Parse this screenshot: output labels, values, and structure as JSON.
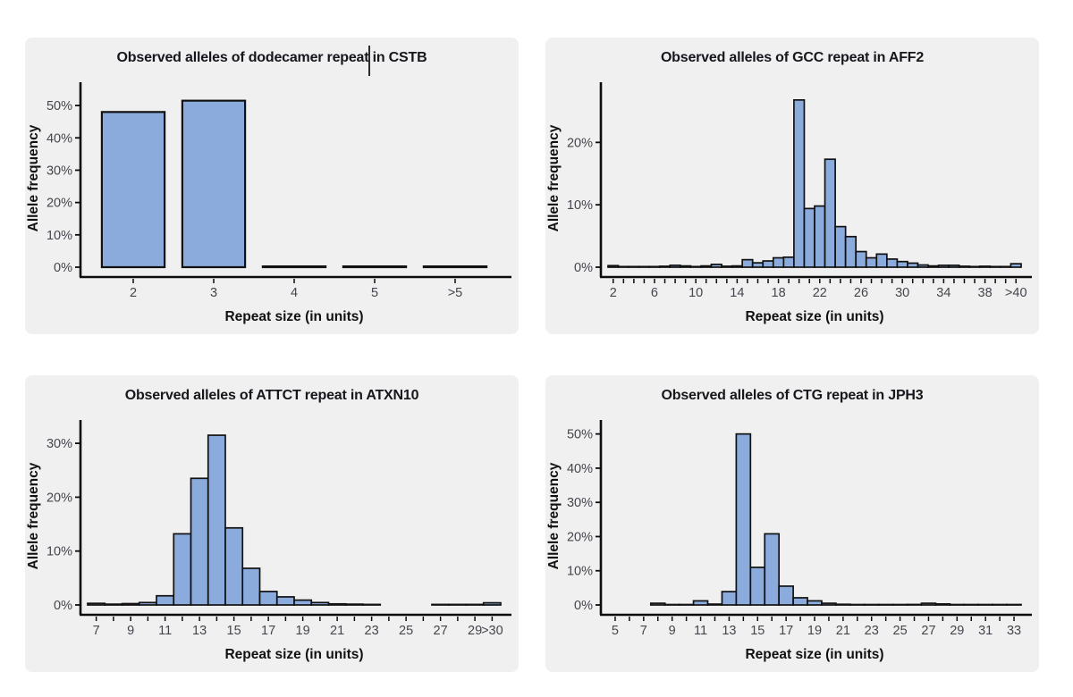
{
  "page": {
    "background": "#ffffff",
    "card_background": "#f0f0f1"
  },
  "colors": {
    "bar_fill": "#8aabdc",
    "bar_outline": "#111111",
    "axis": "#0c0c0c",
    "tick_label": "#45454d",
    "title": "#16161c",
    "axis_label": "#111111"
  },
  "chart_data": [
    {
      "id": "cstb",
      "type": "bar",
      "title": "Observed alleles of dodecamer repeat in CSTB",
      "xlabel": "Repeat size (in units)",
      "ylabel": "Allele frequency",
      "ymax": 55,
      "yticks": [
        0,
        10,
        20,
        30,
        40,
        50
      ],
      "grid": false,
      "bar_rel_width": 0.78,
      "categories": [
        "2",
        "3",
        "4",
        "5",
        ">5"
      ],
      "values": [
        48,
        51.5,
        0.25,
        0.25,
        0.25
      ],
      "labeled_categories": [
        "2",
        "3",
        "4",
        "5",
        ">5"
      ]
    },
    {
      "id": "aff2",
      "type": "bar",
      "title": "Observed alleles of GCC repeat in AFF2",
      "xlabel": "Repeat size (in units)",
      "ylabel": "Allele frequency",
      "ymax": 28.5,
      "yticks": [
        0,
        10,
        20
      ],
      "grid": false,
      "bar_rel_width": 1,
      "categories": [
        "2",
        "3",
        "4",
        "5",
        "6",
        "7",
        "8",
        "9",
        "10",
        "11",
        "12",
        "13",
        "14",
        "15",
        "16",
        "17",
        "18",
        "19",
        "20",
        "21",
        "22",
        "23",
        "24",
        "25",
        "26",
        "27",
        "28",
        "29",
        "30",
        "31",
        "32",
        "33",
        "34",
        "35",
        "36",
        "37",
        "38",
        "39",
        "40",
        ">40"
      ],
      "values": [
        0.25,
        0.1,
        0.1,
        0.1,
        0.1,
        0.15,
        0.3,
        0.2,
        0.1,
        0.2,
        0.45,
        0.15,
        0.2,
        1.2,
        0.7,
        1.0,
        1.5,
        1.6,
        26.8,
        9.4,
        9.8,
        17.3,
        6.5,
        4.9,
        2.5,
        1.5,
        2.1,
        1.3,
        0.9,
        0.65,
        0.35,
        0.2,
        0.3,
        0.3,
        0.15,
        0.1,
        0.15,
        0.1,
        0.1,
        0.55
      ],
      "labeled_categories": [
        "2",
        "6",
        "10",
        "14",
        "18",
        "22",
        "26",
        "30",
        "34",
        "38",
        ">40"
      ]
    },
    {
      "id": "atxn10",
      "type": "bar",
      "title": "Observed alleles of ATTCT repeat in ATXN10",
      "xlabel": "Repeat size (in units)",
      "ylabel": "Allele frequency",
      "ymax": 33,
      "yticks": [
        0,
        10,
        20,
        30
      ],
      "grid": false,
      "bar_rel_width": 1,
      "categories": [
        "7",
        "8",
        "9",
        "10",
        "11",
        "12",
        "13",
        "14",
        "15",
        "16",
        "17",
        "18",
        "19",
        "20",
        "21",
        "22",
        "23",
        "24",
        "25",
        "26",
        "27",
        "28",
        "29",
        ">30"
      ],
      "values": [
        0.3,
        0.15,
        0.25,
        0.45,
        1.7,
        13.2,
        23.5,
        31.5,
        14.3,
        6.8,
        2.5,
        1.5,
        0.9,
        0.45,
        0.2,
        0.15,
        0.1,
        0,
        0,
        0,
        0.1,
        0.1,
        0.1,
        0.4
      ],
      "labeled_categories": [
        "7",
        "9",
        "11",
        "13",
        "15",
        "17",
        "19",
        "21",
        "23",
        "25",
        "27",
        "29",
        ">30"
      ]
    },
    {
      "id": "jph3",
      "type": "bar",
      "title": "Observed alleles of CTG repeat in JPH3",
      "xlabel": "Repeat size (in units)",
      "ylabel": "Allele frequency",
      "ymax": 52,
      "yticks": [
        0,
        10,
        20,
        30,
        40,
        50
      ],
      "grid": false,
      "bar_rel_width": 1,
      "categories": [
        "5",
        "6",
        "7",
        "8",
        "9",
        "10",
        "11",
        "12",
        "13",
        "14",
        "15",
        "16",
        "17",
        "18",
        "19",
        "20",
        "21",
        "22",
        "23",
        "24",
        "25",
        "26",
        "27",
        "28",
        "29",
        "30",
        "31",
        "32",
        "33"
      ],
      "values": [
        0,
        0,
        0,
        0.5,
        0.1,
        0.1,
        1.2,
        0.25,
        3.9,
        50,
        11,
        20.8,
        5.5,
        2.1,
        1.2,
        0.5,
        0.2,
        0.1,
        0.1,
        0.1,
        0.1,
        0.15,
        0.5,
        0.3,
        0.1,
        0.1,
        0.1,
        0.1,
        0.1
      ],
      "labeled_categories": [
        "5",
        "7",
        "9",
        "11",
        "13",
        "15",
        "17",
        "19",
        "21",
        "23",
        "25",
        "27",
        "29",
        "31",
        "33"
      ]
    }
  ]
}
